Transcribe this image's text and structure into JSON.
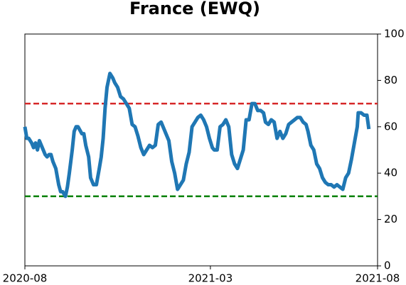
{
  "chart_data": {
    "type": "line",
    "title": "France (EWQ)",
    "x": [
      0,
      2,
      4,
      7,
      9,
      11,
      13,
      15,
      18,
      21,
      23,
      25,
      27,
      29,
      32,
      35,
      37,
      39,
      42,
      44,
      46,
      49,
      51,
      53,
      55,
      59,
      61,
      63,
      66,
      68,
      71,
      74,
      77,
      79,
      81,
      83,
      85,
      87,
      88,
      91,
      93,
      96,
      99,
      102,
      105,
      108,
      111,
      114,
      117,
      120,
      123,
      126,
      129,
      132,
      135,
      138,
      141,
      144,
      146,
      149,
      152,
      155,
      158,
      161,
      164,
      167,
      170,
      173,
      176,
      179,
      182,
      185,
      188,
      191,
      194,
      196,
      199,
      202,
      205,
      208,
      211,
      214,
      217,
      220,
      223,
      226,
      229,
      232,
      235,
      238,
      241,
      244,
      247,
      249,
      252,
      255,
      258,
      261,
      264,
      267,
      270,
      273,
      276,
      279,
      282,
      285,
      288,
      291,
      293,
      296,
      299,
      302,
      305,
      308,
      311,
      314,
      317,
      320,
      323,
      326,
      329,
      332,
      335,
      338,
      341,
      344,
      345,
      348,
      351,
      354,
      356
    ],
    "series": [
      {
        "color": "#1f77b4",
        "values": [
          60,
          55,
          55,
          53,
          51,
          53,
          50,
          54,
          51,
          48,
          47,
          48,
          48,
          45,
          42,
          35,
          32,
          32,
          30,
          34,
          40,
          50,
          58,
          60,
          60,
          57,
          57,
          52,
          47,
          38,
          35,
          35,
          42,
          47,
          55,
          68,
          77,
          81,
          83,
          81,
          79,
          77,
          73,
          72,
          70,
          68,
          61,
          60,
          56,
          51,
          48,
          50,
          52,
          51,
          52,
          61,
          62,
          59,
          57,
          54,
          45,
          40,
          33,
          35,
          37,
          44,
          49,
          60,
          62,
          64,
          65,
          63,
          60,
          55,
          51,
          50,
          50,
          60,
          61,
          63,
          60,
          48,
          44,
          42,
          46,
          50,
          63,
          63,
          70,
          70,
          67,
          67,
          66,
          62,
          61,
          63,
          62,
          55,
          58,
          55,
          57,
          61,
          62,
          63,
          64,
          64,
          62,
          61,
          58,
          52,
          50,
          44,
          42,
          38,
          36,
          35,
          35,
          34,
          35,
          34,
          33,
          38,
          40,
          46,
          53,
          60,
          66,
          66,
          65,
          65,
          59
        ]
      }
    ],
    "hlines": [
      {
        "value": 70,
        "color": "#d62728"
      },
      {
        "value": 30,
        "color": "#008000"
      }
    ],
    "xlim": [
      0,
      365
    ],
    "xticks": [
      {
        "value": 0,
        "label": "2020-08"
      },
      {
        "value": 192,
        "label": "2021-03"
      },
      {
        "value": 365,
        "label": "2021-08"
      }
    ],
    "ylim": [
      0,
      100
    ],
    "yticks": [
      0,
      20,
      40,
      60,
      80,
      100
    ]
  }
}
